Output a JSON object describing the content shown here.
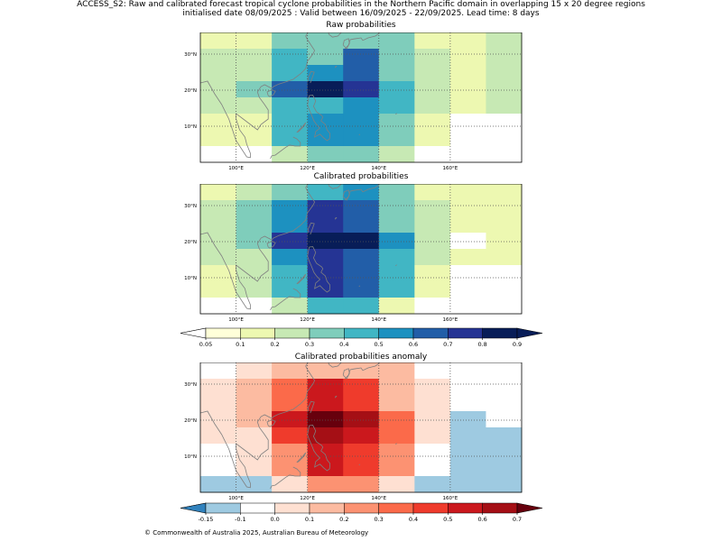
{
  "header": {
    "line1": "ACCESS_S2: Raw and calibrated forecast tropical cyclone probabilities in the Northern Pacific domain in overlapping 15 x 20 degree regions",
    "line2": "initialised date 08/09/2025 :  Valid between 16/09/2025 - 22/09/2025. Lead time: 8 days"
  },
  "footer": "© Commonwealth of Australia 2025, Australian Bureau of Meteorology",
  "chart_data": [
    {
      "type": "heatmap",
      "title": "Raw probabilities",
      "x": [
        "90-100",
        "100-110",
        "110-120",
        "120-130",
        "130-140",
        "140-150",
        "150-160",
        "160-170",
        "170-180"
      ],
      "y": [
        "35-40",
        "30-35",
        "25-30",
        "20-25",
        "15-20",
        "10-15",
        "5-10",
        "0-5"
      ],
      "x_ticks": [
        "100°E",
        "120°E",
        "140°E",
        "160°E"
      ],
      "y_ticks": [
        "30°N",
        "20°N",
        "10°N"
      ],
      "values": [
        [
          0.1,
          0.1,
          0.3,
          0.3,
          0.3,
          0.3,
          0.1,
          0.1,
          0.2
        ],
        [
          0.2,
          0.2,
          0.4,
          0.3,
          0.6,
          0.3,
          0.2,
          0.1,
          0.2
        ],
        [
          0.2,
          0.2,
          0.4,
          0.5,
          0.6,
          0.3,
          0.2,
          0.1,
          0.2
        ],
        [
          0.2,
          0.3,
          0.6,
          0.8,
          0.7,
          0.4,
          0.2,
          0.1,
          0.2
        ],
        [
          0.2,
          0.2,
          0.4,
          0.4,
          0.5,
          0.4,
          0.2,
          0.1,
          0.2
        ],
        [
          0.1,
          0.1,
          0.4,
          0.5,
          0.5,
          0.3,
          0.1,
          0.0,
          0.0
        ],
        [
          0.1,
          0.1,
          0.4,
          0.5,
          0.5,
          0.3,
          0.1,
          0.0,
          0.0
        ],
        [
          0.0,
          0.0,
          0.2,
          0.3,
          0.3,
          0.2,
          0.0,
          0.0,
          0.0
        ]
      ]
    },
    {
      "type": "heatmap",
      "title": "Calibrated probabilities",
      "x": [
        "90-100",
        "100-110",
        "110-120",
        "120-130",
        "130-140",
        "140-150",
        "150-160",
        "160-170",
        "170-180"
      ],
      "y": [
        "35-40",
        "30-35",
        "25-30",
        "20-25",
        "15-20",
        "10-15",
        "5-10",
        "0-5"
      ],
      "x_ticks": [
        "100°E",
        "120°E",
        "140°E",
        "160°E"
      ],
      "y_ticks": [
        "30°N",
        "20°N",
        "10°N"
      ],
      "values": [
        [
          0.1,
          0.2,
          0.3,
          0.4,
          0.5,
          0.3,
          0.1,
          0.1,
          0.1
        ],
        [
          0.2,
          0.3,
          0.5,
          0.7,
          0.6,
          0.3,
          0.2,
          0.1,
          0.1
        ],
        [
          0.2,
          0.3,
          0.5,
          0.7,
          0.6,
          0.3,
          0.2,
          0.1,
          0.1
        ],
        [
          0.2,
          0.3,
          0.7,
          0.9,
          0.8,
          0.5,
          0.2,
          0.0,
          0.1
        ],
        [
          0.2,
          0.2,
          0.5,
          0.7,
          0.6,
          0.4,
          0.2,
          0.1,
          0.1
        ],
        [
          0.1,
          0.2,
          0.4,
          0.7,
          0.6,
          0.4,
          0.1,
          0.0,
          0.0
        ],
        [
          0.1,
          0.2,
          0.4,
          0.7,
          0.6,
          0.4,
          0.1,
          0.0,
          0.0
        ],
        [
          0.0,
          0.0,
          0.2,
          0.4,
          0.4,
          0.1,
          0.0,
          0.0,
          0.0
        ]
      ]
    },
    {
      "type": "heatmap",
      "title": "Calibrated probabilities anomaly",
      "x": [
        "90-100",
        "100-110",
        "110-120",
        "120-130",
        "130-140",
        "140-150",
        "150-160",
        "160-170",
        "170-180"
      ],
      "y": [
        "35-40",
        "30-35",
        "25-30",
        "20-25",
        "15-20",
        "10-15",
        "5-10",
        "0-5"
      ],
      "x_ticks": [
        "100°E",
        "120°E",
        "140°E",
        "160°E"
      ],
      "y_ticks": [
        "30°N",
        "20°N",
        "10°N"
      ],
      "values": [
        [
          -0.1,
          0.0,
          0.1,
          0.1,
          0.1,
          0.1,
          -0.1,
          -0.1,
          -0.1
        ],
        [
          0.0,
          0.1,
          0.3,
          0.5,
          0.4,
          0.1,
          0.0,
          -0.1,
          -0.1
        ],
        [
          0.0,
          0.1,
          0.3,
          0.5,
          0.4,
          0.1,
          0.0,
          -0.1,
          -0.1
        ],
        [
          0.0,
          0.1,
          0.5,
          0.7,
          0.6,
          0.3,
          0.0,
          -0.15,
          -0.1
        ],
        [
          0.0,
          0.0,
          0.4,
          0.6,
          0.5,
          0.3,
          0.0,
          -0.15,
          -0.15
        ],
        [
          -0.1,
          0.0,
          0.2,
          0.5,
          0.4,
          0.2,
          -0.1,
          -0.15,
          -0.15
        ],
        [
          -0.1,
          0.0,
          0.2,
          0.5,
          0.4,
          0.2,
          -0.1,
          -0.15,
          -0.15
        ],
        [
          -0.15,
          -0.15,
          0.0,
          0.2,
          0.2,
          0.0,
          -0.15,
          -0.15,
          -0.15
        ]
      ]
    }
  ],
  "colorbars": {
    "probability": {
      "ticks": [
        "0.05",
        "0.1",
        "0.2",
        "0.3",
        "0.4",
        "0.5",
        "0.6",
        "0.7",
        "0.8",
        "0.9"
      ],
      "colors": [
        "#ffffd9",
        "#edf8b1",
        "#c7e9b4",
        "#7fcdbb",
        "#41b6c4",
        "#1d91c0",
        "#225ea8",
        "#253494",
        "#081d58"
      ],
      "under_color": "#ffffff",
      "over_color": "#081d58"
    },
    "anomaly": {
      "ticks": [
        "-0.15",
        "-0.1",
        "0.0",
        "0.1",
        "0.2",
        "0.3",
        "0.4",
        "0.5",
        "0.6",
        "0.7"
      ],
      "colors": [
        "#9ecae1",
        "#ffffff",
        "#fee0d2",
        "#fcbba1",
        "#fc9272",
        "#fb6a4a",
        "#ef3b2c",
        "#cb181d",
        "#a50f15"
      ],
      "under_color": "#3182bd",
      "over_color": "#67000d"
    }
  }
}
